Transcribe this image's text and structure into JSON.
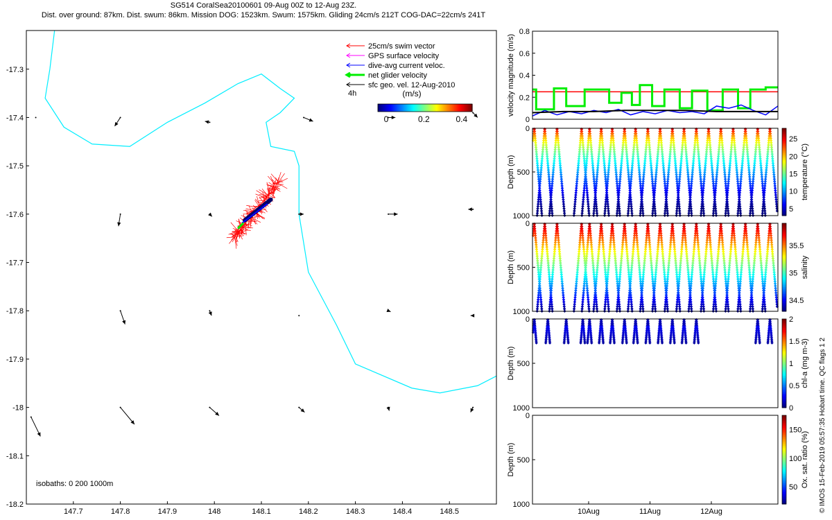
{
  "header": {
    "title": "SG514 CoralSea20100601 09-Aug 00Z to 12-Aug 23Z.",
    "subtitle": "Dist. over ground: 87km. Dist. swum: 86km. Mission DOG: 1523km. Swum: 1575km. Gliding 24cm/s 212T COG-DAC=22cm/s 241T"
  },
  "credit": "© IMOS 15-Feb-2019 05:57:35 Hobart time. QC flags 1  2",
  "colors": {
    "swim": "#ff0000",
    "gps": "#ff00ff",
    "dac": "#0000ff",
    "net": "#00ee00",
    "geo": "#000000",
    "coast": "#00eeff"
  },
  "chart_data": [
    {
      "type": "scatter",
      "name": "map",
      "xlabel": "",
      "ylabel": "",
      "xlim": [
        147.6,
        148.6
      ],
      "ylim": [
        -18.2,
        -17.22
      ],
      "xticks": [
        147.7,
        147.8,
        147.9,
        148.0,
        148.1,
        148.2,
        148.3,
        148.4,
        148.5
      ],
      "xtick_labels": [
        "147.7",
        "147.8",
        "147.9",
        "148",
        "148.1",
        "148.2",
        "148.3",
        "148.4",
        "148.5"
      ],
      "yticks": [
        -17.3,
        -17.4,
        -17.5,
        -17.6,
        -17.7,
        -17.8,
        -17.9,
        -18.0,
        -18.1,
        -18.2
      ],
      "ytick_labels": [
        "-17.3",
        "-17.4",
        "-17.5",
        "-17.6",
        "-17.7",
        "-17.8",
        "-17.9",
        "-18",
        "-18.1",
        "-18.2"
      ],
      "legend": {
        "position": "top-right",
        "entries": [
          {
            "label": "25cm/s swim vector",
            "color": "#ff0000"
          },
          {
            "label": "GPS surface velocity",
            "color": "#ff00ff"
          },
          {
            "label": "dive-avg current veloc.",
            "color": "#0000ff"
          },
          {
            "label": "net glider velocity",
            "color": "#00ee00"
          },
          {
            "label": "sfc geo. vel. 12-Aug-2010",
            "color": "#000000"
          }
        ]
      },
      "time_label": "4h",
      "colorbar": {
        "label": "(m/s)",
        "ticks": [
          0,
          0.2,
          0.4
        ],
        "range": [
          0,
          0.5
        ]
      },
      "isobaths_note": "isobaths: 0   200  1000m",
      "isobath_1000m": [
        [
          147.66,
          -17.22
        ],
        [
          147.65,
          -17.3
        ],
        [
          147.64,
          -17.36
        ],
        [
          147.68,
          -17.42
        ],
        [
          147.74,
          -17.455
        ],
        [
          147.82,
          -17.46
        ],
        [
          147.9,
          -17.41
        ],
        [
          147.98,
          -17.37
        ],
        [
          148.05,
          -17.33
        ],
        [
          148.1,
          -17.31
        ],
        [
          148.14,
          -17.34
        ],
        [
          148.17,
          -17.36
        ],
        [
          148.14,
          -17.39
        ],
        [
          148.11,
          -17.41
        ],
        [
          148.12,
          -17.46
        ],
        [
          148.17,
          -17.47
        ],
        [
          148.18,
          -17.5
        ],
        [
          148.18,
          -17.6
        ],
        [
          148.2,
          -17.72
        ],
        [
          148.26,
          -17.83
        ],
        [
          148.3,
          -17.91
        ],
        [
          148.42,
          -17.96
        ],
        [
          148.48,
          -17.97
        ],
        [
          148.56,
          -17.955
        ],
        [
          148.6,
          -17.935
        ]
      ],
      "swim_cloud_center": [
        148.09,
        -17.59
      ],
      "net_track": [
        [
          148.05,
          -17.63
        ],
        [
          148.12,
          -17.57
        ]
      ],
      "geo_vectors": [
        [
          147.62,
          -17.4,
          0.0,
          0.0
        ],
        [
          147.8,
          -17.4,
          -0.012,
          -0.018
        ],
        [
          147.99,
          -17.41,
          -0.01,
          0.002
        ],
        [
          148.19,
          -17.4,
          0.02,
          -0.008
        ],
        [
          148.37,
          -17.4,
          0.015,
          0.0
        ],
        [
          148.55,
          -17.39,
          0.01,
          -0.01
        ],
        [
          147.8,
          -17.6,
          -0.004,
          -0.025
        ],
        [
          147.99,
          -17.6,
          0.005,
          -0.005
        ],
        [
          148.18,
          -17.6,
          0.01,
          0.0
        ],
        [
          148.37,
          -17.6,
          0.02,
          0.0
        ],
        [
          148.55,
          -17.59,
          -0.01,
          0.0
        ],
        [
          147.8,
          -17.8,
          0.01,
          -0.028
        ],
        [
          147.99,
          -17.8,
          0.004,
          -0.01
        ],
        [
          148.18,
          -17.81,
          0.0,
          0.0
        ],
        [
          148.37,
          -17.8,
          0.005,
          -0.002
        ],
        [
          148.55,
          -17.81,
          -0.005,
          0.0
        ],
        [
          147.61,
          -18.02,
          0.02,
          -0.04
        ],
        [
          147.8,
          -18.0,
          0.03,
          -0.035
        ],
        [
          147.99,
          -18.0,
          0.02,
          -0.017
        ],
        [
          148.18,
          -18.0,
          0.012,
          -0.01
        ],
        [
          148.37,
          -18.0,
          0.002,
          -0.007
        ],
        [
          148.55,
          -18.0,
          -0.005,
          -0.01
        ]
      ]
    },
    {
      "type": "line",
      "name": "velocity",
      "ylabel": "velocity magnitude (m/s)",
      "xlim": [
        0,
        4
      ],
      "ylim": [
        0,
        0.8
      ],
      "yticks": [
        0,
        0.2,
        0.4,
        0.6,
        0.8
      ],
      "series": [
        {
          "color": "#ff0000",
          "x": [
            0,
            4
          ],
          "y": [
            0.25,
            0.25
          ]
        },
        {
          "color": "#00ee00",
          "x": [
            0,
            0.06,
            0.06,
            0.35,
            0.35,
            0.55,
            0.55,
            0.85,
            0.85,
            1.25,
            1.25,
            1.45,
            1.45,
            1.62,
            1.62,
            1.75,
            1.75,
            1.95,
            1.95,
            2.15,
            2.15,
            2.4,
            2.4,
            2.6,
            2.6,
            2.85,
            2.85,
            3.1,
            3.1,
            3.35,
            3.35,
            3.55,
            3.55,
            3.8,
            3.8,
            4.0
          ],
          "y": [
            0.27,
            0.27,
            0.09,
            0.09,
            0.28,
            0.28,
            0.12,
            0.12,
            0.27,
            0.27,
            0.15,
            0.15,
            0.24,
            0.24,
            0.13,
            0.13,
            0.31,
            0.31,
            0.12,
            0.12,
            0.27,
            0.27,
            0.1,
            0.1,
            0.26,
            0.26,
            0.08,
            0.08,
            0.27,
            0.27,
            0.1,
            0.1,
            0.27,
            0.27,
            0.29,
            0.29
          ]
        },
        {
          "color": "#0000ff",
          "x": [
            0,
            0.2,
            0.4,
            0.6,
            0.8,
            1.0,
            1.2,
            1.4,
            1.6,
            1.8,
            2.0,
            2.2,
            2.4,
            2.6,
            2.8,
            3.0,
            3.2,
            3.4,
            3.6,
            3.8,
            4.0
          ],
          "y": [
            0.03,
            0.08,
            0.04,
            0.07,
            0.05,
            0.08,
            0.06,
            0.09,
            0.04,
            0.07,
            0.05,
            0.08,
            0.06,
            0.07,
            0.05,
            0.12,
            0.1,
            0.13,
            0.08,
            0.04,
            0.12
          ]
        },
        {
          "color": "#000000",
          "x": [
            0,
            0.5,
            1,
            1.5,
            2,
            2.5,
            3,
            3.5,
            4
          ],
          "y": [
            0.06,
            0.07,
            0.07,
            0.08,
            0.08,
            0.08,
            0.07,
            0.07,
            0.07
          ]
        }
      ]
    },
    {
      "type": "scatter",
      "name": "temperature",
      "ylabel": "Depth (m)",
      "colorbar_label": "temperature (°C)",
      "colorbar_ticks": [
        5,
        10,
        15,
        20,
        25
      ],
      "crange": [
        3,
        28
      ],
      "xlim": [
        0,
        4
      ],
      "ylim": [
        1000,
        0
      ],
      "yticks": [
        0,
        500,
        1000
      ],
      "dives": [
        0.03,
        0.2,
        0.4,
        0.8,
        0.93,
        1.12,
        1.3,
        1.5,
        1.68,
        1.88,
        2.08,
        2.28,
        2.47,
        2.67,
        2.87,
        3.07,
        3.27,
        3.47,
        3.67,
        3.87
      ]
    },
    {
      "type": "scatter",
      "name": "salinity",
      "ylabel": "Depth (m)",
      "colorbar_label": "salinity",
      "colorbar_ticks": [
        34.5,
        35,
        35.5
      ],
      "crange": [
        34.3,
        35.9
      ],
      "xlim": [
        0,
        4
      ],
      "ylim": [
        1000,
        0
      ],
      "yticks": [
        0,
        500,
        1000
      ],
      "dives": [
        0.03,
        0.2,
        0.4,
        0.8,
        0.93,
        1.12,
        1.3,
        1.5,
        1.68,
        1.88,
        2.08,
        2.28,
        2.47,
        2.67,
        2.87,
        3.07,
        3.27,
        3.47,
        3.67,
        3.87
      ]
    },
    {
      "type": "scatter",
      "name": "chl",
      "ylabel": "Depth (m)",
      "colorbar_label": "chl-a (mg m-3)",
      "colorbar_ticks": [
        0,
        0.5,
        1,
        1.5,
        2
      ],
      "crange": [
        0,
        2
      ],
      "xlim": [
        0,
        4
      ],
      "ylim": [
        1000,
        0
      ],
      "yticks": [
        0,
        500,
        1000
      ],
      "dives": [
        0.03,
        0.25,
        0.55,
        0.82,
        0.93,
        1.12,
        1.3,
        1.5,
        1.68,
        1.88,
        2.08,
        2.28,
        2.47,
        2.67,
        3.67,
        3.87
      ]
    },
    {
      "type": "scatter",
      "name": "oxygen",
      "ylabel": "Depth (m)",
      "colorbar_label": "Ox. sat. ratio (%)",
      "colorbar_ticks": [
        50,
        100,
        150
      ],
      "crange": [
        20,
        175
      ],
      "xlim": [
        0,
        4
      ],
      "ylim": [
        1000,
        0
      ],
      "yticks": [
        0,
        500,
        1000
      ],
      "xticks": [
        0.915,
        1.915,
        2.915
      ],
      "xtick_labels": [
        "10Aug",
        "11Aug",
        "12Aug"
      ],
      "dives": []
    }
  ]
}
